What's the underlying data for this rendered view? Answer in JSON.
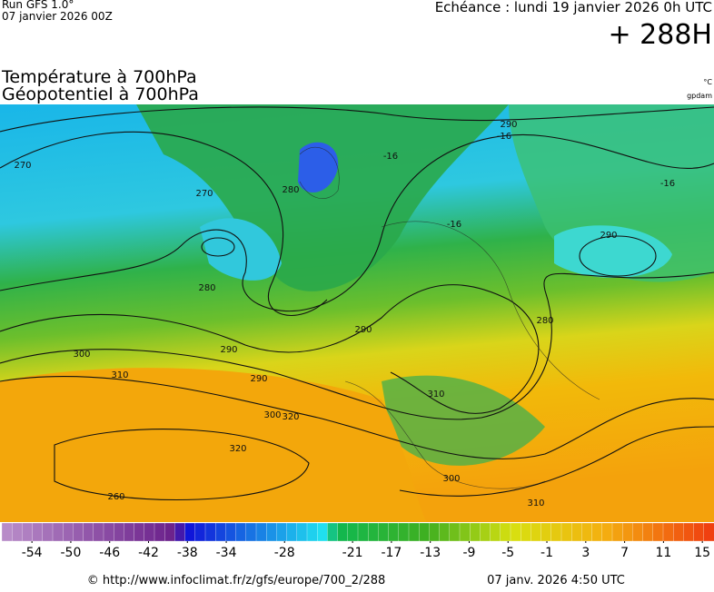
{
  "header": {
    "run": "Run GFS 1.0°",
    "date": "07 janvier 2026 00Z",
    "valid": "Echéance : lundi 19 janvier 2026 0h UTC",
    "lead": "+ 288H",
    "title1": "Température à 700hPa",
    "title2": "Géopotentiel à 700hPa",
    "unit1": "°C",
    "unit2": "gpdam"
  },
  "map": {
    "contour_labels": [
      "270",
      "280",
      "290",
      "300",
      "310",
      "320",
      "320",
      "260",
      "270",
      "280",
      "290",
      "280",
      "290",
      "300",
      "310",
      "290",
      "300",
      "310",
      "290",
      "-16",
      "-16",
      "-16",
      "-16"
    ]
  },
  "colorbar": {
    "lim": [
      -57.1,
      16.2
    ],
    "ticks": [
      -54,
      -50,
      -46,
      -42,
      -38,
      -34,
      -28,
      -21,
      -17,
      -13,
      -9,
      -5,
      -1,
      3,
      7,
      11,
      15
    ]
  },
  "footer": {
    "url": "© http://www.infoclimat.fr/z/gfs/europe/700_2/288",
    "stamp": "07 janv. 2026  4:50 UTC"
  }
}
